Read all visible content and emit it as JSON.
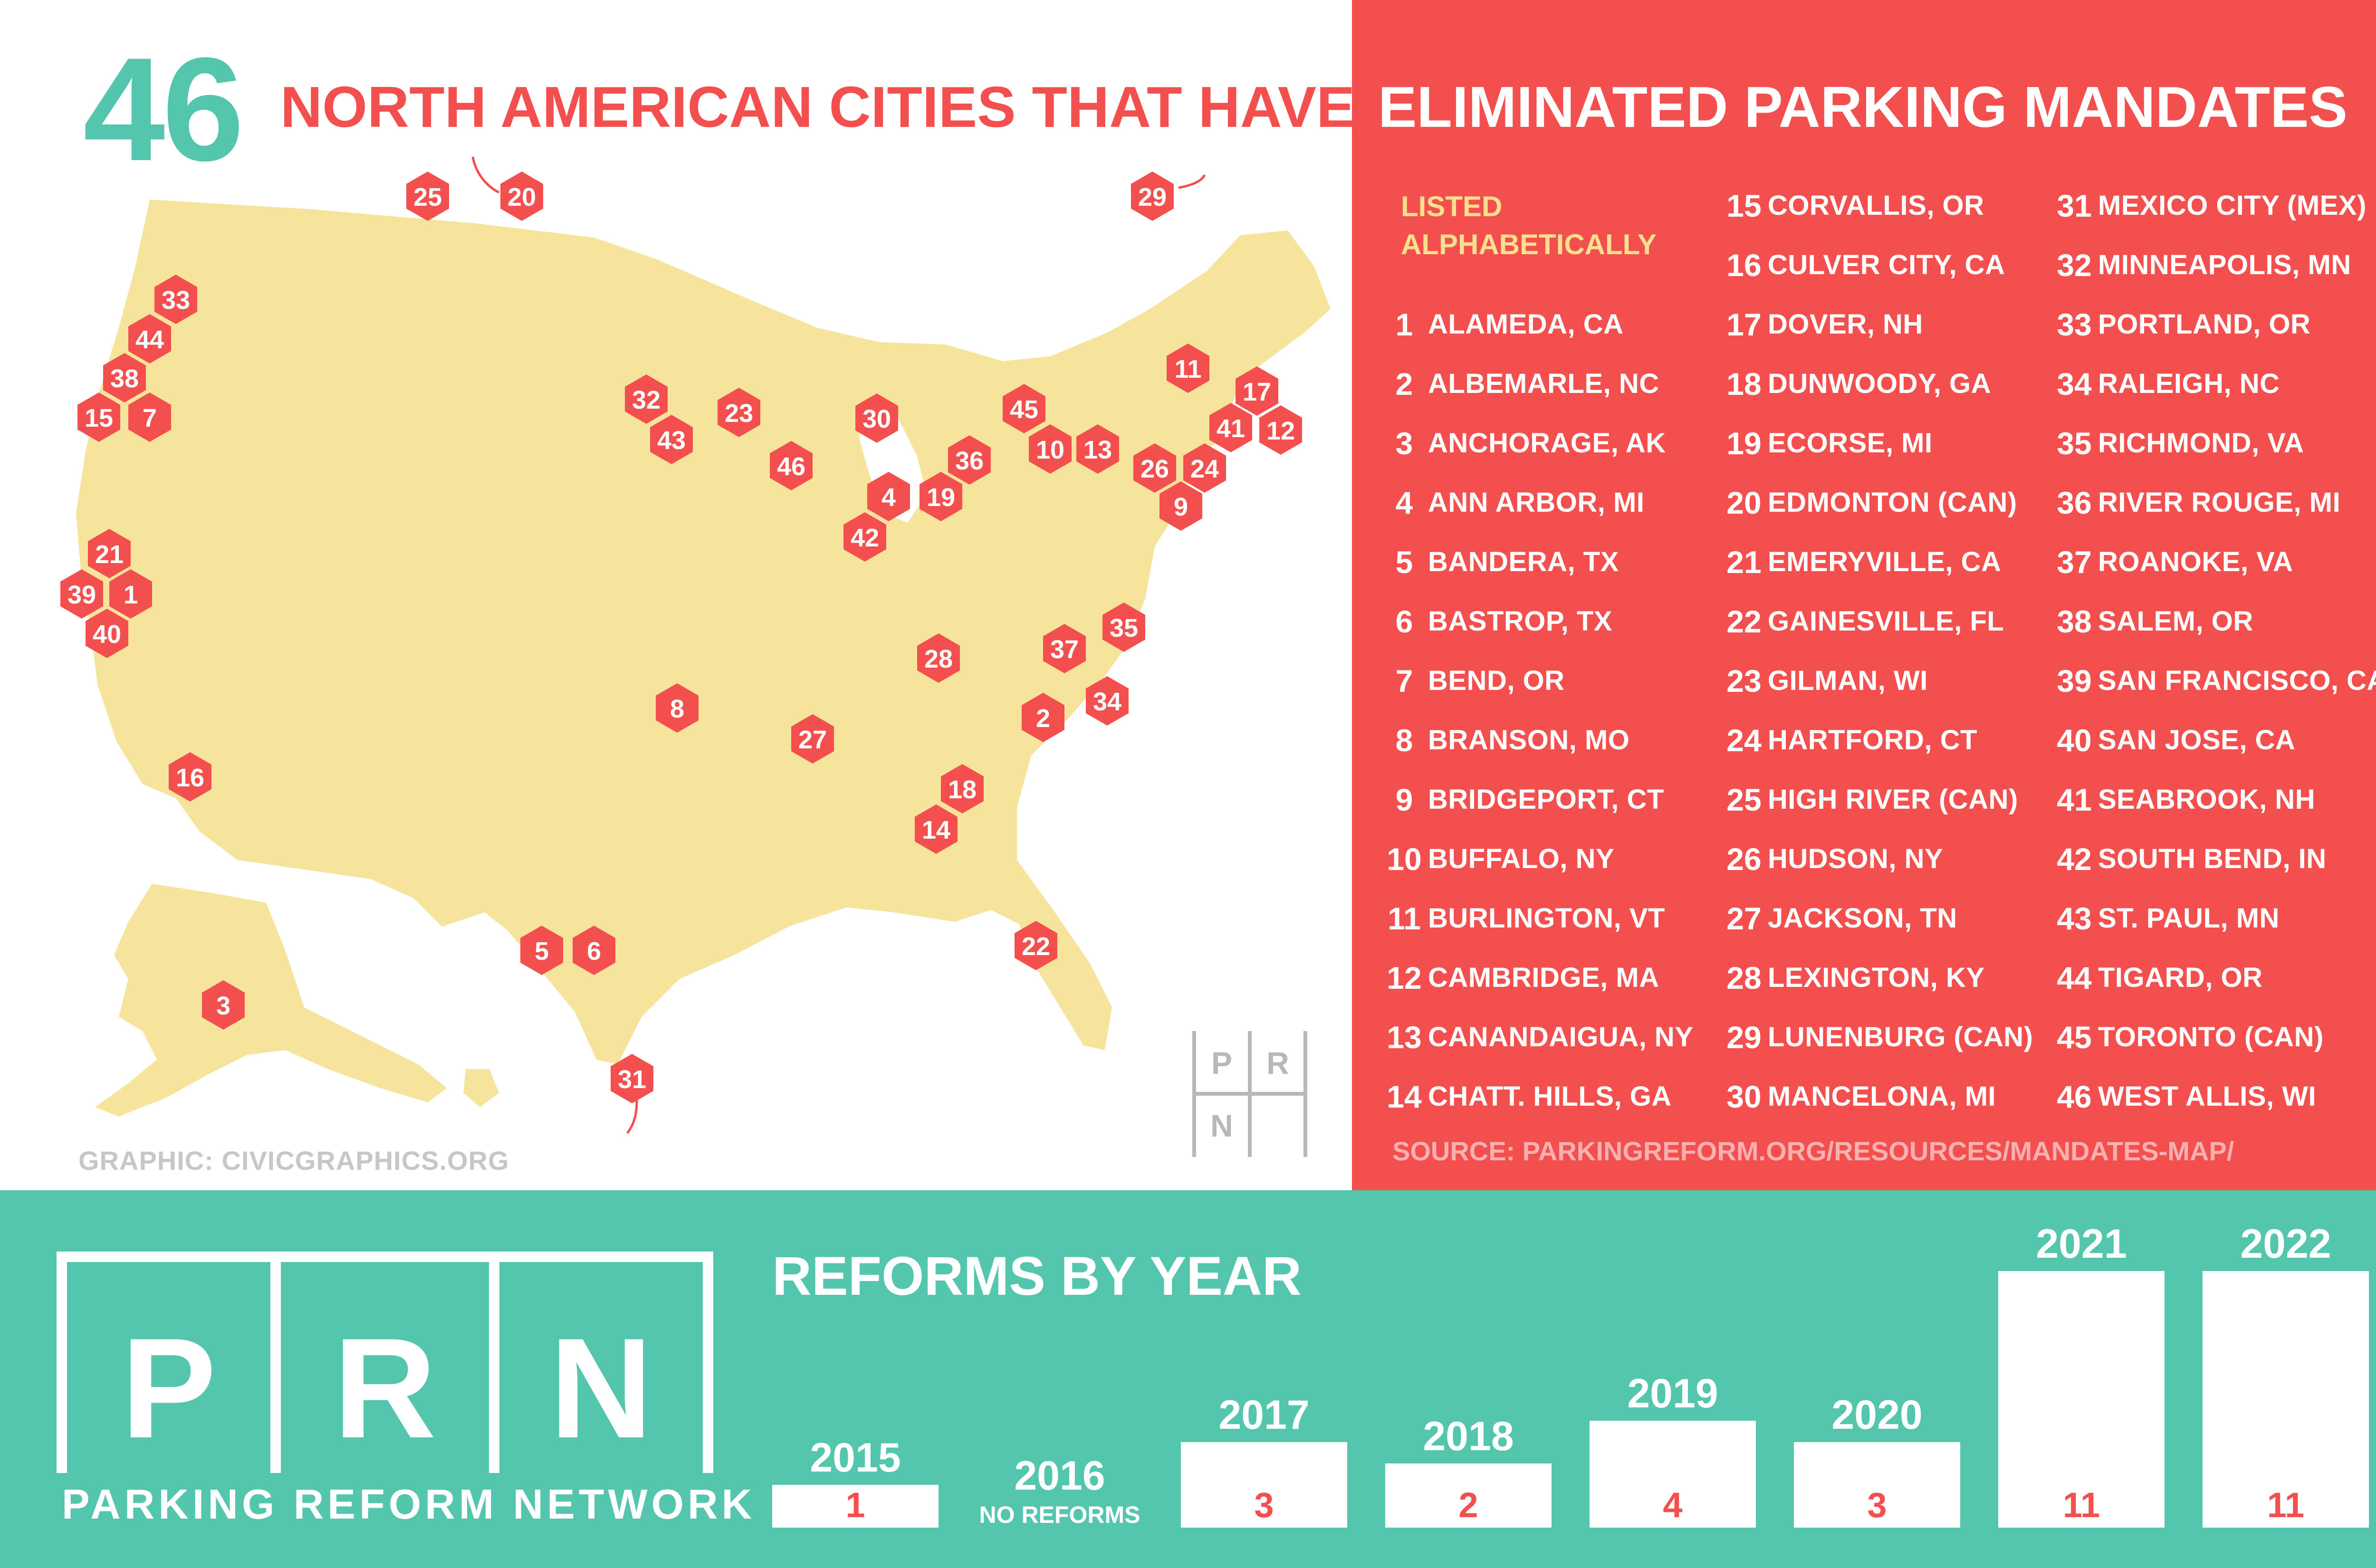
{
  "header": {
    "count": "46",
    "title_left": "NORTH AMERICAN CITIES THAT HAVE",
    "title_right": "ELIMINATED PARKING MANDATES"
  },
  "list": {
    "header_line1": "LISTED",
    "header_line2": "ALPHABETICALLY",
    "source": "SOURCE: PARKINGREFORM.ORG/RESOURCES/MANDATES-MAP/",
    "cities": [
      {
        "num": "1",
        "name": "ALAMEDA, CA"
      },
      {
        "num": "2",
        "name": "ALBEMARLE, NC"
      },
      {
        "num": "3",
        "name": "ANCHORAGE, AK"
      },
      {
        "num": "4",
        "name": "ANN ARBOR, MI"
      },
      {
        "num": "5",
        "name": "BANDERA, TX"
      },
      {
        "num": "6",
        "name": "BASTROP, TX"
      },
      {
        "num": "7",
        "name": "BEND, OR"
      },
      {
        "num": "8",
        "name": "BRANSON, MO"
      },
      {
        "num": "9",
        "name": "BRIDGEPORT, CT"
      },
      {
        "num": "10",
        "name": "BUFFALO, NY"
      },
      {
        "num": "11",
        "name": "BURLINGTON, VT"
      },
      {
        "num": "12",
        "name": "CAMBRIDGE, MA"
      },
      {
        "num": "13",
        "name": "CANANDAIGUA, NY"
      },
      {
        "num": "14",
        "name": "CHATT. HILLS, GA"
      },
      {
        "num": "15",
        "name": "CORVALLIS, OR"
      },
      {
        "num": "16",
        "name": "CULVER CITY, CA"
      },
      {
        "num": "17",
        "name": "DOVER, NH"
      },
      {
        "num": "18",
        "name": "DUNWOODY, GA"
      },
      {
        "num": "19",
        "name": "ECORSE, MI"
      },
      {
        "num": "20",
        "name": "EDMONTON (CAN)"
      },
      {
        "num": "21",
        "name": "EMERYVILLE, CA"
      },
      {
        "num": "22",
        "name": "GAINESVILLE, FL"
      },
      {
        "num": "23",
        "name": "GILMAN, WI"
      },
      {
        "num": "24",
        "name": "HARTFORD, CT"
      },
      {
        "num": "25",
        "name": "HIGH RIVER (CAN)"
      },
      {
        "num": "26",
        "name": "HUDSON, NY"
      },
      {
        "num": "27",
        "name": "JACKSON, TN"
      },
      {
        "num": "28",
        "name": "LEXINGTON, KY"
      },
      {
        "num": "29",
        "name": "LUNENBURG (CAN)"
      },
      {
        "num": "30",
        "name": "MANCELONA, MI"
      },
      {
        "num": "31",
        "name": "MEXICO CITY (MEX)"
      },
      {
        "num": "32",
        "name": "MINNEAPOLIS, MN"
      },
      {
        "num": "33",
        "name": "PORTLAND, OR"
      },
      {
        "num": "34",
        "name": "RALEIGH, NC"
      },
      {
        "num": "35",
        "name": "RICHMOND, VA"
      },
      {
        "num": "36",
        "name": "RIVER ROUGE, MI"
      },
      {
        "num": "37",
        "name": "ROANOKE, VA"
      },
      {
        "num": "38",
        "name": "SALEM, OR"
      },
      {
        "num": "39",
        "name": "SAN FRANCISCO, CA"
      },
      {
        "num": "40",
        "name": "SAN JOSE, CA"
      },
      {
        "num": "41",
        "name": "SEABROOK, NH"
      },
      {
        "num": "42",
        "name": "SOUTH BEND, IN"
      },
      {
        "num": "43",
        "name": "ST. PAUL, MN"
      },
      {
        "num": "44",
        "name": "TIGARD, OR"
      },
      {
        "num": "45",
        "name": "TORONTO (CAN)"
      },
      {
        "num": "46",
        "name": "WEST ALLIS, WI"
      }
    ]
  },
  "map": {
    "credit": "GRAPHIC:  CIVICGRAPHICS.ORG",
    "logo_letters": [
      "P",
      "R",
      "N"
    ]
  },
  "footer": {
    "logo_letters": [
      "P",
      "R",
      "N"
    ],
    "org_name": "PARKING REFORM NETWORK"
  },
  "colors": {
    "teal": "#55c6ae",
    "coral": "#f44f4f",
    "map_fill": "#f7e49c",
    "yellow_text": "#f8e08e",
    "grey": "#c7c7c7"
  },
  "chart_data": {
    "type": "bar",
    "title": "REFORMS BY YEAR",
    "categories": [
      "2015",
      "2016",
      "2017",
      "2018",
      "2019",
      "2020",
      "2021",
      "2022"
    ],
    "values": [
      1,
      0,
      3,
      2,
      4,
      3,
      11,
      11
    ],
    "value_labels": [
      "1",
      "",
      "3",
      "2",
      "4",
      "3",
      "11",
      "11"
    ],
    "notes": {
      "2016": "NO REFORMS"
    },
    "ylim": [
      0,
      11
    ],
    "xlabel": "",
    "ylabel": ""
  }
}
